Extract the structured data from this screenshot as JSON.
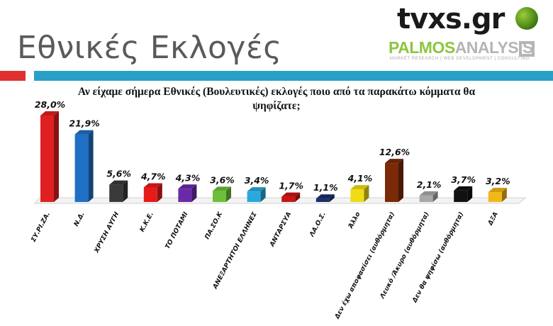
{
  "header": {
    "title": "Εθνικές Εκλογές",
    "logo_tvxs": "tvxs.gr",
    "logo_palmos_1": "PALMOS",
    "logo_palmos_2": "ANALYSIS",
    "logo_palmos_sub": "MARKET RESEARCH | WEB DEVELOPMENT | CONSULTING"
  },
  "chart_data": {
    "type": "bar",
    "title": "Αν είχαμε σήμερα Εθνικές (Βουλευτικές) εκλογές ποιο από τα παρακάτω κόμματα θα ψηφίζατε;",
    "categories": [
      "ΣΥ.ΡΙ.ΖΑ.",
      "Ν.Δ.",
      "ΧΡΥΣΗ ΑΥΓΗ",
      "Κ.Κ.Ε.",
      "ΤΟ ΠΟΤΑΜΙ",
      "ΠΑ.ΣΟ.Κ",
      "ΑΝΕΞΑΡΤΗΤΟΙ ΕΛΛΗΝΕΣ",
      "ΑΝΤΑΡΣΥΑ",
      "ΛΑ.Ο.Σ.",
      "Άλλο",
      "Δεν έχω αποφασίσει (αυθόρμητα)",
      "Λευκό /Άκυρο (αυθόρμητα)",
      "Δεν θα ψηφίσω (αυθόρμητα)",
      "ΔΞΑ"
    ],
    "values": [
      28.0,
      21.9,
      5.6,
      4.7,
      4.3,
      3.6,
      3.4,
      1.7,
      1.1,
      4.1,
      12.6,
      2.1,
      3.7,
      3.2
    ],
    "value_labels": [
      "28,0%",
      "21,9%",
      "5,6%",
      "4,7%",
      "4,3%",
      "3,6%",
      "3,4%",
      "1,7%",
      "1,1%",
      "4,1%",
      "12,6%",
      "2,1%",
      "3,7%",
      "3,2%"
    ],
    "colors": [
      "#e02020",
      "#1f6fc4",
      "#3a3a3a",
      "#e51b1b",
      "#6a2aa8",
      "#6cbf3a",
      "#2aa8dc",
      "#c81414",
      "#1c2e6a",
      "#f0dc14",
      "#7a2a08",
      "#a8a8a8",
      "#111111",
      "#f2b818"
    ],
    "ylim": [
      0,
      30
    ],
    "grid": false,
    "legend": "none"
  }
}
